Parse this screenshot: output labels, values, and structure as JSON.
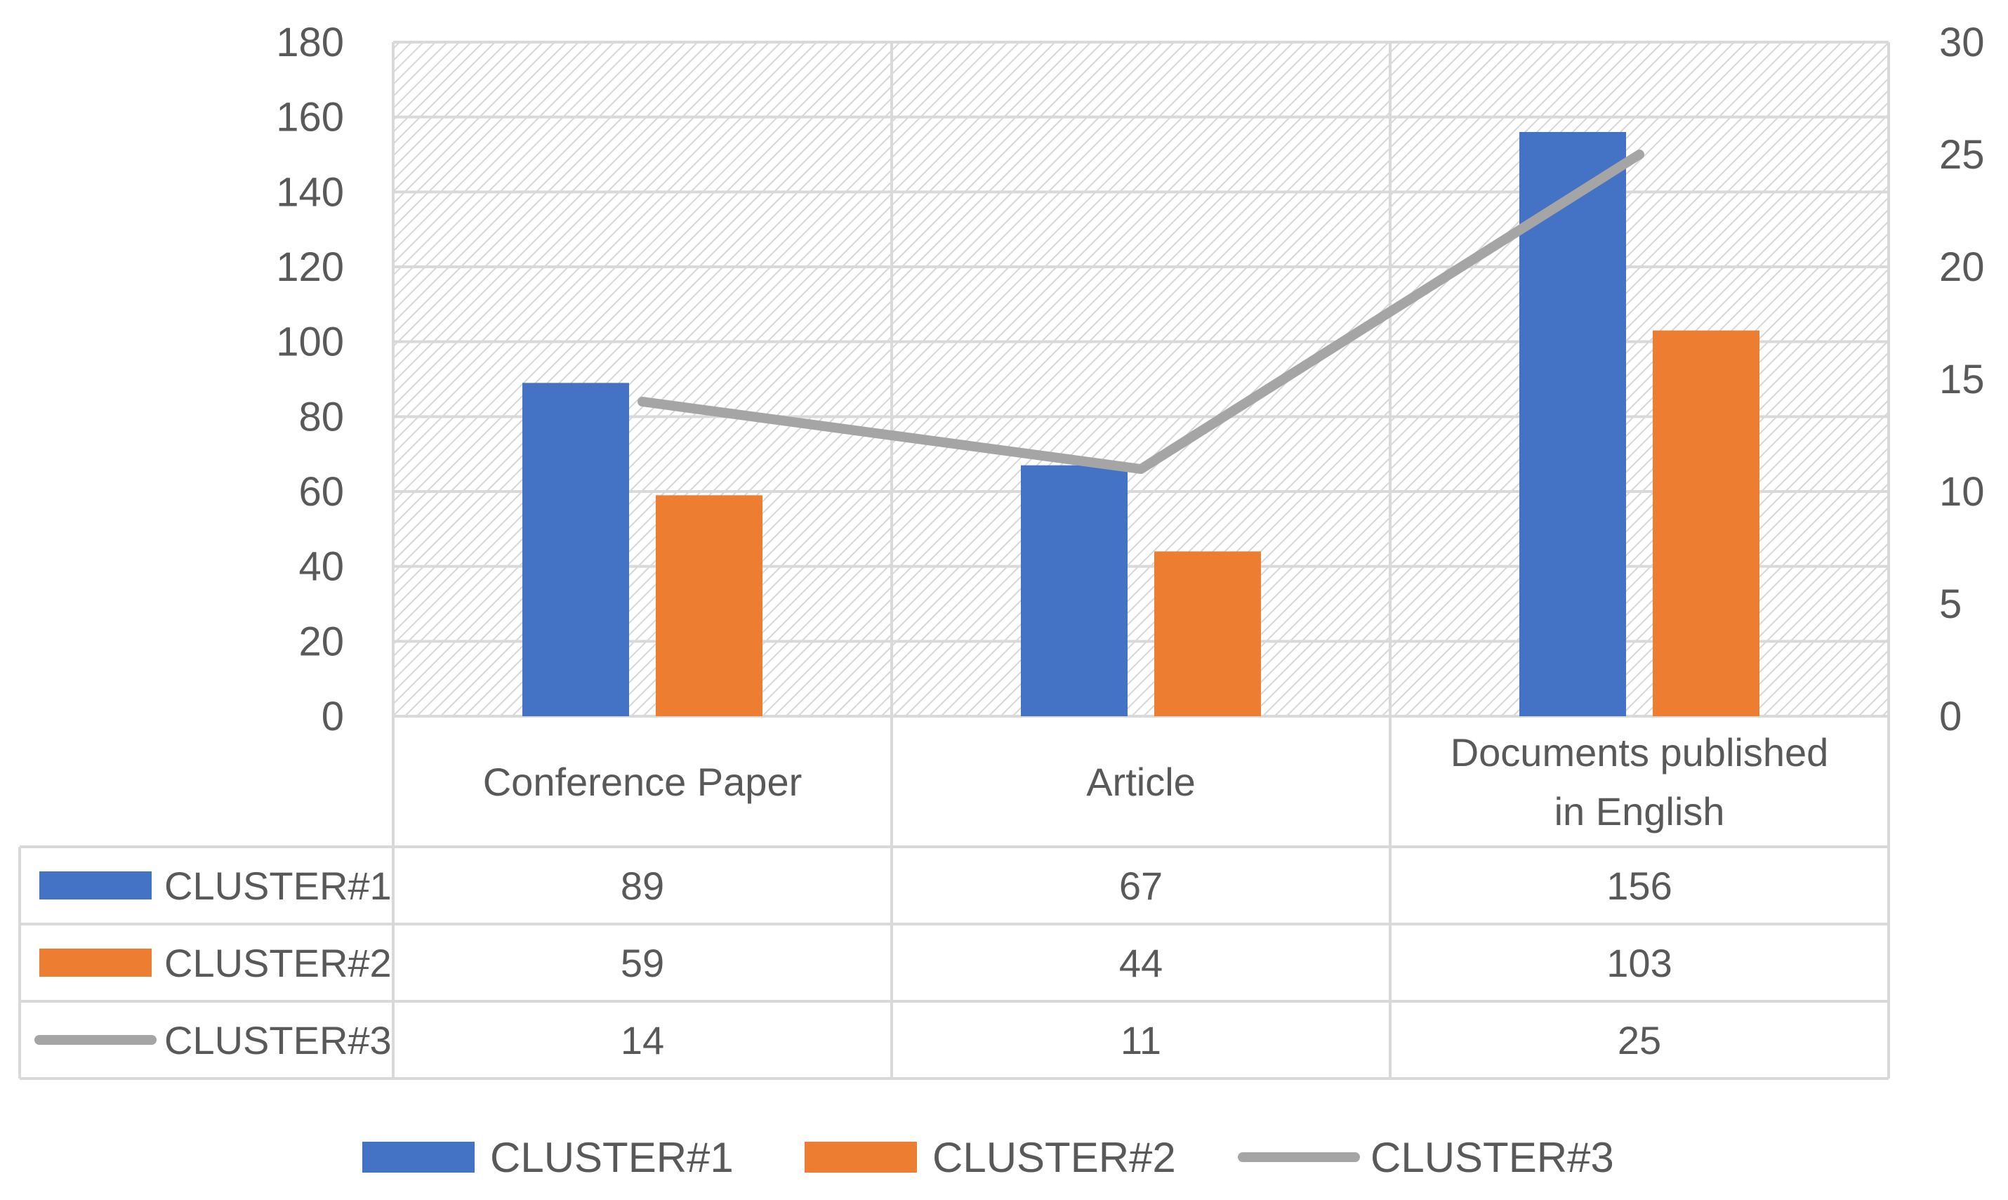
{
  "chart_data": {
    "type": "bar",
    "title": "",
    "xlabel": "",
    "ylabel": "",
    "categories": [
      "Conference Paper",
      "Article",
      "Documents published in English"
    ],
    "category_lines": [
      [
        "Conference Paper"
      ],
      [
        "Article"
      ],
      [
        "Documents published",
        "in English"
      ]
    ],
    "ylim": [
      0,
      180
    ],
    "yticks": [
      0,
      20,
      40,
      60,
      80,
      100,
      120,
      140,
      160,
      180
    ],
    "y2lim": [
      0,
      30
    ],
    "y2ticks": [
      0,
      5,
      10,
      15,
      20,
      25,
      30
    ],
    "grid": true,
    "data_table": true,
    "legend_position": "bottom",
    "series": [
      {
        "name": "CLUSTER#1",
        "kind": "bar",
        "axis": "primary",
        "color": "#4472C4",
        "values": [
          89,
          67,
          156
        ],
        "labels": [
          "89",
          "67",
          "156"
        ]
      },
      {
        "name": "CLUSTER#2",
        "kind": "bar",
        "axis": "primary",
        "color": "#ED7D31",
        "values": [
          59,
          44,
          103
        ],
        "labels": [
          "59",
          "44",
          "103"
        ]
      },
      {
        "name": "CLUSTER#3",
        "kind": "line",
        "axis": "secondary",
        "color": "#A5A5A5",
        "values": [
          14,
          11,
          25
        ],
        "labels": [
          "14",
          "11",
          "25"
        ]
      }
    ]
  }
}
